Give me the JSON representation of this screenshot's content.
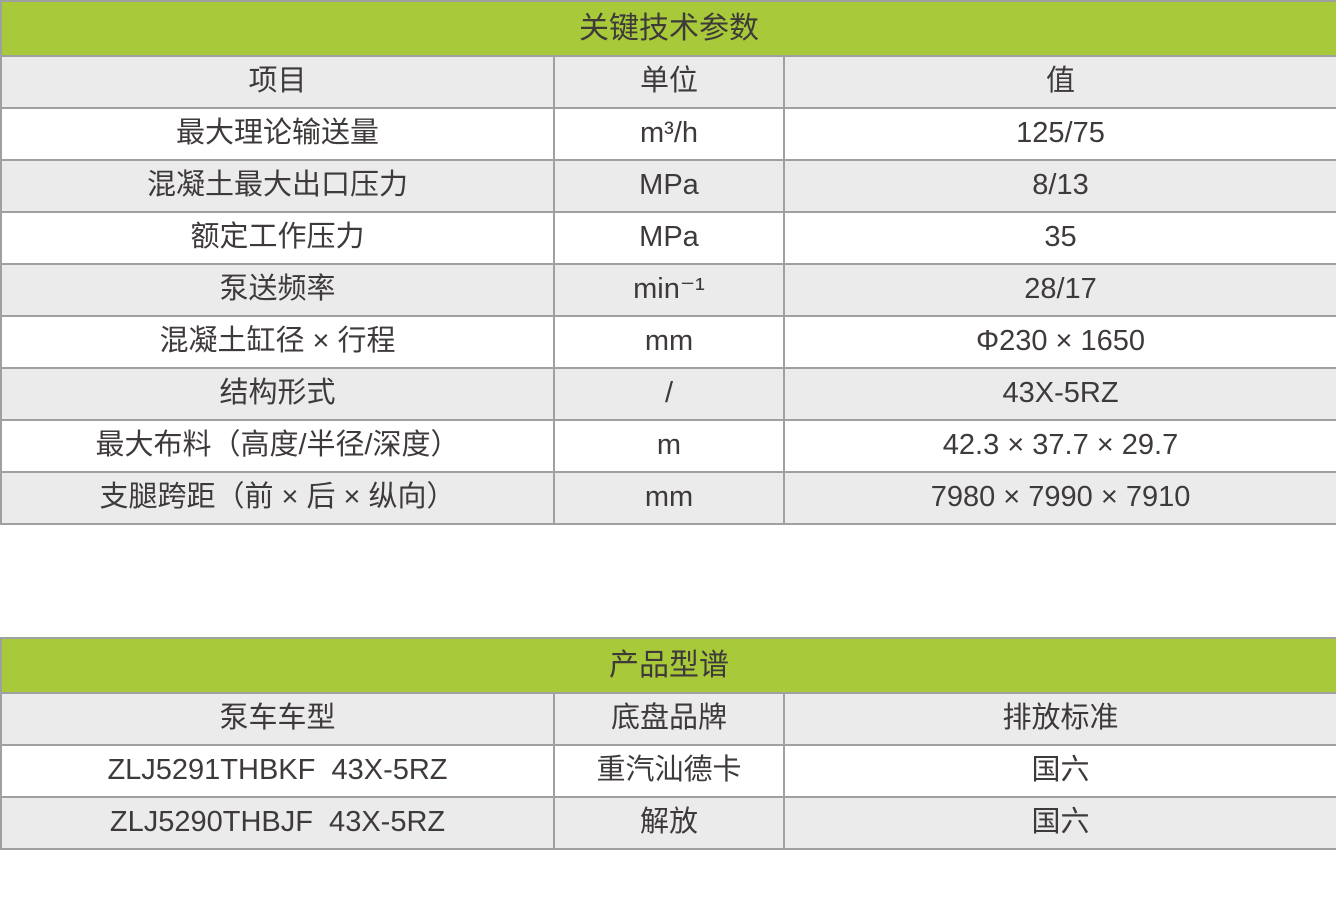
{
  "colors": {
    "brand_green": "#a8ca3a",
    "row_alt_gray": "#ebebeb",
    "border_gray": "#9fa0a0",
    "text_dark": "#3e3a39"
  },
  "key_parameters_table": {
    "title": "关键技术参数",
    "columns": [
      "项目",
      "单位",
      "值"
    ],
    "rows": [
      {
        "item": "最大理论输送量",
        "unit": "m³/h",
        "value": "125/75"
      },
      {
        "item": "混凝土最大出口压力",
        "unit": "MPa",
        "value": "8/13"
      },
      {
        "item": "额定工作压力",
        "unit": "MPa",
        "value": "35"
      },
      {
        "item": "泵送频率",
        "unit": "min⁻¹",
        "value": "28/17"
      },
      {
        "item": "混凝土缸径 × 行程",
        "unit": "mm",
        "value": "Φ230 × 1650"
      },
      {
        "item": "结构形式",
        "unit": "/",
        "value": "43X-5RZ"
      },
      {
        "item": "最大布料（高度/半径/深度）",
        "unit": "m",
        "value": "42.3 × 37.7 × 29.7"
      },
      {
        "item": "支腿跨距（前 × 后 × 纵向）",
        "unit": "mm",
        "value": "7980 × 7990 × 7910"
      }
    ]
  },
  "product_spectrum_table": {
    "title": "产品型谱",
    "columns": [
      "泵车车型",
      "底盘品牌",
      "排放标准"
    ],
    "rows": [
      {
        "model": "ZLJ5291THBKF  43X-5RZ",
        "chassis": "重汽汕德卡",
        "emission": "国六"
      },
      {
        "model": "ZLJ5290THBJF  43X-5RZ",
        "chassis": "解放",
        "emission": "国六"
      }
    ]
  }
}
